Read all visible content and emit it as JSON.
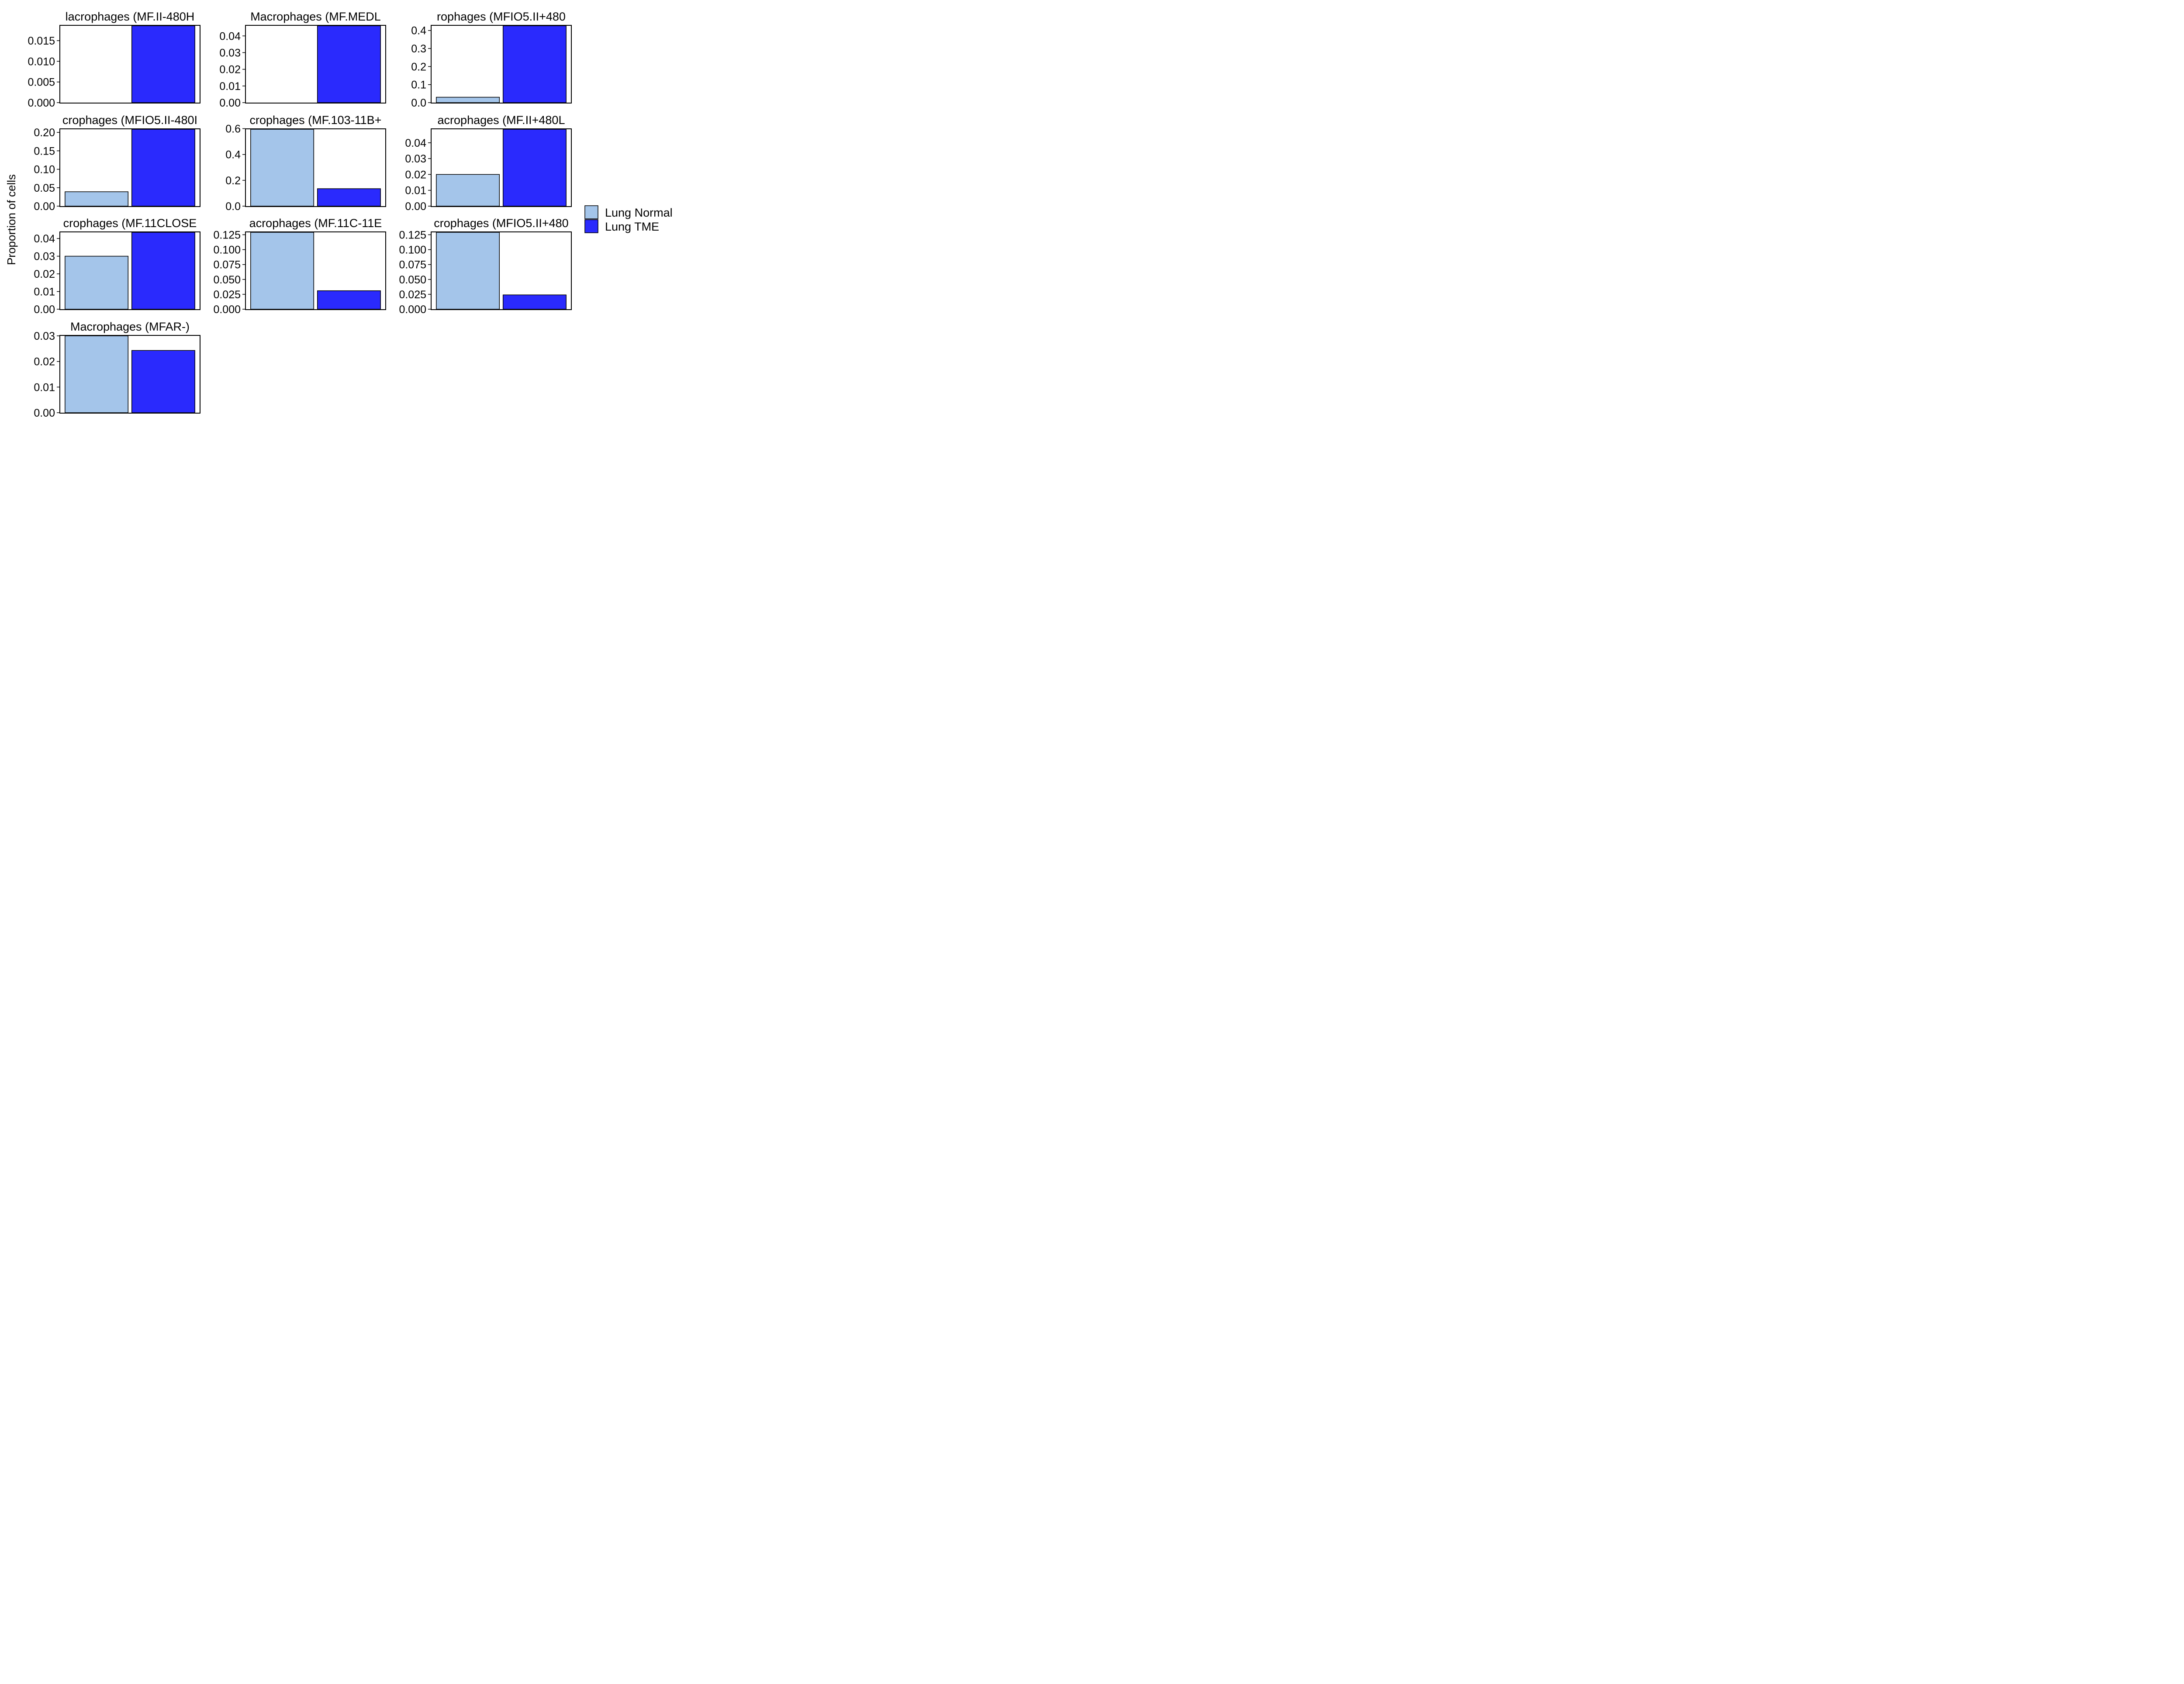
{
  "colors": {
    "lung_normal": "#a4c5ea",
    "lung_tme": "#2a2afd",
    "panel_border": "#000000",
    "background": "#ffffff"
  },
  "ylabel": "Proportion of cells",
  "legend": {
    "placement": "right",
    "entries": [
      {
        "label": "Lung Normal",
        "color": "#a4c5ea"
      },
      {
        "label": "Lung TME",
        "color": "#2a2afd"
      }
    ]
  },
  "chart_data": [
    {
      "type": "bar",
      "title": "lacrophages (MF.II-480H",
      "categories": [
        "Lung Normal",
        "Lung TME"
      ],
      "values": [
        0,
        0.0186
      ],
      "ylim": [
        0,
        0.0186
      ],
      "yticks": [
        "0.000",
        "0.005",
        "0.010",
        "0.015"
      ]
    },
    {
      "type": "bar",
      "title": "Macrophages (MF.MEDL",
      "categories": [
        "Lung Normal",
        "Lung TME"
      ],
      "values": [
        0,
        0.0461
      ],
      "ylim": [
        0,
        0.0461
      ],
      "yticks": [
        "0.00",
        "0.01",
        "0.02",
        "0.03",
        "0.04"
      ]
    },
    {
      "type": "bar",
      "title": "rophages (MFIO5.II+480",
      "categories": [
        "Lung Normal",
        "Lung TME"
      ],
      "values": [
        0.03,
        0.426
      ],
      "ylim": [
        0,
        0.426
      ],
      "yticks": [
        "0.0",
        "0.1",
        "0.2",
        "0.3",
        "0.4"
      ]
    },
    {
      "type": "bar",
      "title": "crophages (MFIO5.II-480I",
      "categories": [
        "Lung Normal",
        "Lung TME"
      ],
      "values": [
        0.039,
        0.2085
      ],
      "ylim": [
        0,
        0.2085
      ],
      "yticks": [
        "0.00",
        "0.05",
        "0.10",
        "0.15",
        "0.20"
      ]
    },
    {
      "type": "bar",
      "title": "crophages (MF.103-11B+",
      "categories": [
        "Lung Normal",
        "Lung TME"
      ],
      "values": [
        0.595,
        0.135
      ],
      "ylim": [
        0,
        0.595
      ],
      "yticks": [
        "0.0",
        "0.2",
        "0.4",
        "0.6"
      ]
    },
    {
      "type": "bar",
      "title": "acrophages (MF.II+480L",
      "categories": [
        "Lung Normal",
        "Lung TME"
      ],
      "values": [
        0.02,
        0.0485
      ],
      "ylim": [
        0,
        0.0485
      ],
      "yticks": [
        "0.00",
        "0.01",
        "0.02",
        "0.03",
        "0.04"
      ]
    },
    {
      "type": "bar",
      "title": "crophages (MF.11CLOSE",
      "categories": [
        "Lung Normal",
        "Lung TME"
      ],
      "values": [
        0.03,
        0.0435
      ],
      "ylim": [
        0,
        0.0435
      ],
      "yticks": [
        "0.00",
        "0.01",
        "0.02",
        "0.03",
        "0.04"
      ]
    },
    {
      "type": "bar",
      "title": "acrophages (MF.11C-11E",
      "categories": [
        "Lung Normal",
        "Lung TME"
      ],
      "values": [
        0.129,
        0.031
      ],
      "ylim": [
        0,
        0.129
      ],
      "yticks": [
        "0.000",
        "0.025",
        "0.050",
        "0.075",
        "0.100",
        "0.125"
      ]
    },
    {
      "type": "bar",
      "title": "crophages (MFIO5.II+480",
      "categories": [
        "Lung Normal",
        "Lung TME"
      ],
      "values": [
        0.129,
        0.024
      ],
      "ylim": [
        0,
        0.129
      ],
      "yticks": [
        "0.000",
        "0.025",
        "0.050",
        "0.075",
        "0.100",
        "0.125"
      ]
    },
    {
      "type": "bar",
      "title": "Macrophages (MFAR-)",
      "categories": [
        "Lung Normal",
        "Lung TME"
      ],
      "values": [
        0.03,
        0.0243
      ],
      "ylim": [
        0,
        0.03
      ],
      "yticks": [
        "0.00",
        "0.01",
        "0.02",
        "0.03"
      ]
    }
  ]
}
